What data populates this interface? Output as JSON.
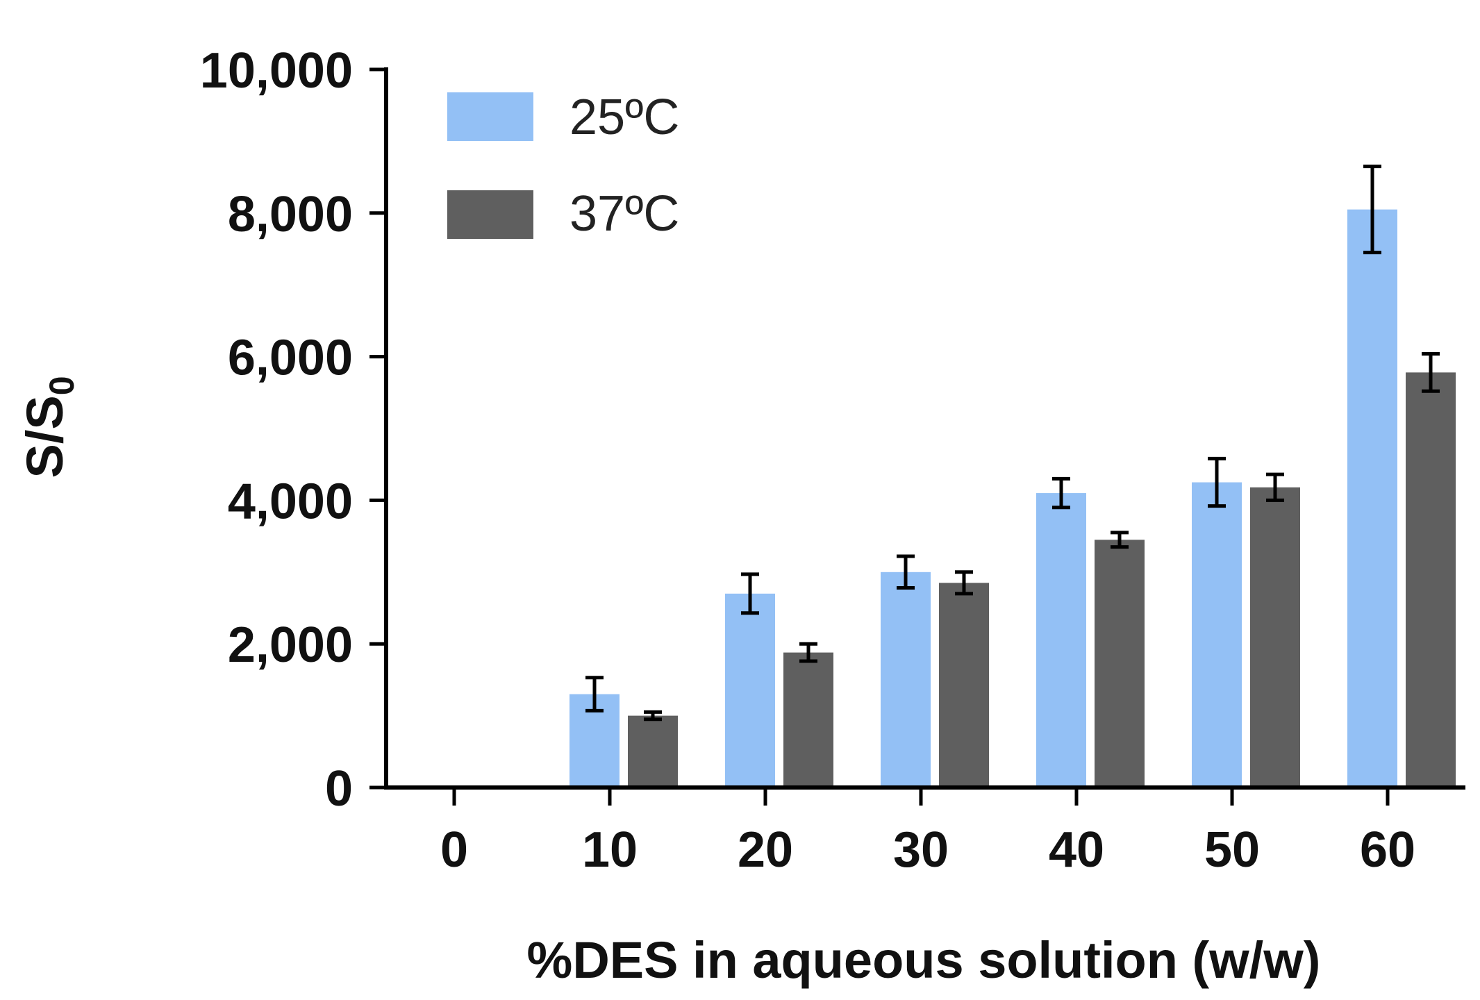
{
  "chart_data": {
    "type": "bar",
    "title": "",
    "xlabel": "%DES in aqueous solution (w/w)",
    "ylabel_main": "S/S",
    "ylabel_sub": "0",
    "categories": [
      "0",
      "10",
      "20",
      "30",
      "40",
      "50",
      "60"
    ],
    "ylim": [
      0,
      10000
    ],
    "yticks": [
      0,
      2000,
      4000,
      6000,
      8000,
      10000
    ],
    "ytick_labels": [
      "0",
      "2,000",
      "4,000",
      "6,000",
      "8,000",
      "10,000"
    ],
    "grid": false,
    "legend_position": "top-left",
    "series": [
      {
        "name": "25ºC",
        "color": "#93c0f5",
        "values": [
          0,
          1300,
          2700,
          3000,
          4100,
          4250,
          8050
        ],
        "errors": [
          0,
          230,
          270,
          220,
          200,
          330,
          600
        ]
      },
      {
        "name": "37ºC",
        "color": "#5f5f5f",
        "values": [
          0,
          1000,
          1880,
          2850,
          3450,
          4180,
          5780
        ],
        "errors": [
          0,
          50,
          120,
          150,
          100,
          180,
          260
        ]
      }
    ]
  }
}
